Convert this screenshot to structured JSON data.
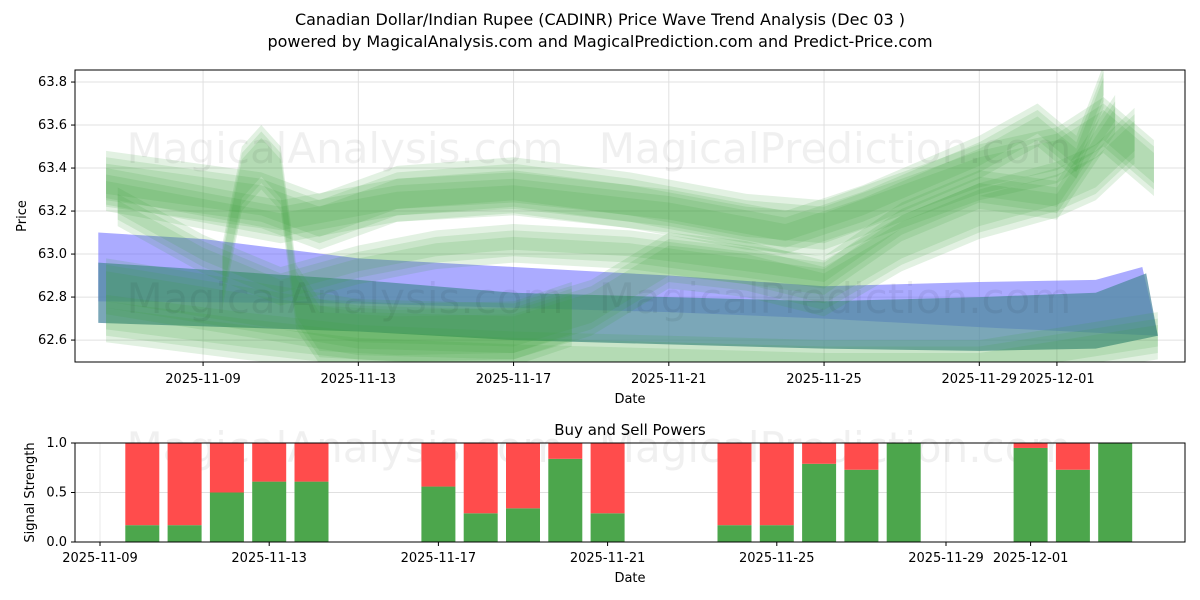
{
  "title_line1": "Canadian Dollar/Indian Rupee (CADINR) Price Wave Trend Analysis (Dec 03 )",
  "title_line2": "powered by MagicalAnalysis.com and MagicalPrediction.com and Predict-Price.com",
  "watermarks": [
    "MagicalAnalysis.com",
    "MagicalPrediction.com"
  ],
  "chart_data": [
    {
      "type": "area",
      "title": "",
      "xlabel": "Date",
      "ylabel": "Price",
      "x_unit": "days since 2025-11-09",
      "xlim": [
        -3.3,
        25.3
      ],
      "ylim": [
        62.498,
        63.856
      ],
      "yticks": [
        62.6,
        62.8,
        63.0,
        63.2,
        63.4,
        63.6,
        63.8
      ],
      "ytick_labels": [
        "62.6",
        "62.8",
        "63.0",
        "63.2",
        "63.4",
        "63.6",
        "63.8"
      ],
      "xticks": [
        0,
        4,
        8,
        12,
        16,
        20,
        22
      ],
      "xtick_labels": [
        "2025-11-09",
        "2025-11-13",
        "2025-11-17",
        "2025-11-21",
        "2025-11-25",
        "2025-11-29",
        "2025-12-01"
      ],
      "grid": true,
      "blue_bands": [
        {
          "color": "#6666ff",
          "upper": [
            [
              -2.7,
              63.1
            ],
            [
              0,
              63.07
            ],
            [
              4,
              62.98
            ],
            [
              8,
              62.94
            ],
            [
              12,
              62.9
            ],
            [
              16,
              62.85
            ],
            [
              20,
              62.87
            ],
            [
              23,
              62.88
            ],
            [
              24.2,
              62.94
            ],
            [
              24.6,
              62.62
            ]
          ],
          "lower": [
            [
              -2.7,
              62.78
            ],
            [
              4,
              62.77
            ],
            [
              8,
              62.75
            ],
            [
              12,
              62.73
            ],
            [
              16,
              62.7
            ],
            [
              20,
              62.66
            ],
            [
              24.6,
              62.62
            ]
          ]
        },
        {
          "color": "#4f8aa0",
          "upper": [
            [
              -2.7,
              62.96
            ],
            [
              4,
              62.88
            ],
            [
              8,
              62.82
            ],
            [
              12,
              62.8
            ],
            [
              16,
              62.78
            ],
            [
              20,
              62.8
            ],
            [
              23,
              62.82
            ],
            [
              24.3,
              62.91
            ],
            [
              24.6,
              62.62
            ]
          ],
          "lower": [
            [
              -2.7,
              62.68
            ],
            [
              4,
              62.64
            ],
            [
              8,
              62.6
            ],
            [
              12,
              62.58
            ],
            [
              16,
              62.56
            ],
            [
              20,
              62.55
            ],
            [
              23,
              62.56
            ],
            [
              24.6,
              62.62
            ]
          ]
        }
      ],
      "green_waves": [
        {
          "width": 0.1,
          "points": [
            [
              -2.5,
              63.35
            ],
            [
              1.5,
              63.25
            ],
            [
              3,
              63.15
            ],
            [
              5,
              63.28
            ],
            [
              8,
              63.32
            ],
            [
              11,
              63.25
            ],
            [
              14,
              63.15
            ],
            [
              16,
              63.12
            ],
            [
              18,
              63.25
            ],
            [
              20,
              63.38
            ],
            [
              22,
              63.46
            ],
            [
              23.2,
              63.6
            ],
            [
              24.5,
              63.4
            ]
          ]
        },
        {
          "width": 0.1,
          "points": [
            [
              -2.5,
              62.85
            ],
            [
              2,
              62.72
            ],
            [
              4,
              62.66
            ],
            [
              8,
              62.64
            ],
            [
              10,
              62.75
            ],
            [
              12,
              62.97
            ],
            [
              14,
              62.93
            ],
            [
              16,
              62.84
            ],
            [
              18,
              63.05
            ],
            [
              20,
              63.2
            ],
            [
              22,
              63.3
            ],
            [
              23,
              63.38
            ],
            [
              24,
              63.55
            ]
          ]
        },
        {
          "width": 0.08,
          "points": [
            [
              -2.5,
              62.7
            ],
            [
              1,
              62.62
            ],
            [
              4,
              62.56
            ],
            [
              8,
              62.53
            ],
            [
              12,
              62.51
            ],
            [
              16,
              62.49
            ],
            [
              20,
              62.49
            ],
            [
              24.6,
              62.62
            ]
          ]
        },
        {
          "width": 0.12,
          "points": [
            [
              0.5,
              62.9
            ],
            [
              1.0,
              63.35
            ],
            [
              1.5,
              63.45
            ],
            [
              2.0,
              63.35
            ],
            [
              2.4,
              62.8
            ],
            [
              3,
              62.64
            ],
            [
              5,
              62.62
            ],
            [
              8,
              62.63
            ],
            [
              9.5,
              62.72
            ]
          ]
        },
        {
          "width": 0.07,
          "points": [
            [
              -2.5,
              63.3
            ],
            [
              2,
              63.15
            ],
            [
              5,
              63.25
            ],
            [
              8,
              63.28
            ],
            [
              12,
              63.2
            ],
            [
              15,
              63.1
            ],
            [
              17,
              63.22
            ],
            [
              20,
              63.45
            ],
            [
              21.5,
              63.6
            ],
            [
              22.5,
              63.45
            ],
            [
              23.2,
              63.78
            ]
          ]
        },
        {
          "width": 0.06,
          "points": [
            [
              -2.2,
              63.22
            ],
            [
              0,
              63.0
            ],
            [
              2,
              62.85
            ],
            [
              4,
              62.95
            ],
            [
              6,
              63.02
            ],
            [
              8,
              63.05
            ],
            [
              11,
              63.02
            ],
            [
              14,
              62.95
            ],
            [
              16,
              62.9
            ],
            [
              18,
              63.15
            ],
            [
              20,
              63.3
            ],
            [
              22,
              63.25
            ],
            [
              23.5,
              63.65
            ]
          ]
        }
      ]
    },
    {
      "type": "bar",
      "title": "Buy and Sell Powers",
      "xlabel": "Date",
      "ylabel": "Signal Strength",
      "ylim": [
        0,
        1
      ],
      "yticks": [
        0.0,
        0.5,
        1.0
      ],
      "ytick_labels": [
        "0.0",
        "0.5",
        "1.0"
      ],
      "xticks": [
        0,
        4,
        8,
        12,
        16,
        20,
        22
      ],
      "xtick_labels": [
        "2025-11-09",
        "2025-11-13",
        "2025-11-17",
        "2025-11-21",
        "2025-11-25",
        "2025-11-29",
        "2025-12-01"
      ],
      "categories": [
        "2025-11-10",
        "2025-11-11",
        "2025-11-12",
        "2025-11-13",
        "2025-11-14",
        "2025-11-17",
        "2025-11-18",
        "2025-11-19",
        "2025-11-20",
        "2025-11-21",
        "2025-11-24",
        "2025-11-25",
        "2025-11-26",
        "2025-11-27",
        "2025-11-28",
        "2025-12-01",
        "2025-12-02",
        "2025-12-03"
      ],
      "x_days": [
        1,
        2,
        3,
        4,
        5,
        8,
        9,
        10,
        11,
        12,
        15,
        16,
        17,
        18,
        19,
        22,
        23,
        24
      ],
      "series": [
        {
          "name": "Buy",
          "color": "#4ca64c",
          "values": [
            0.17,
            0.17,
            0.5,
            0.61,
            0.61,
            0.56,
            0.29,
            0.34,
            0.84,
            0.29,
            0.17,
            0.17,
            0.79,
            0.73,
            1.0,
            0.95,
            0.73,
            1.0
          ]
        },
        {
          "name": "Sell",
          "color": "#ff4c4c",
          "values": [
            0.83,
            0.83,
            0.5,
            0.39,
            0.39,
            0.44,
            0.71,
            0.66,
            0.16,
            0.71,
            0.83,
            0.83,
            0.21,
            0.27,
            0.0,
            0.05,
            0.27,
            0.0
          ]
        }
      ]
    }
  ]
}
